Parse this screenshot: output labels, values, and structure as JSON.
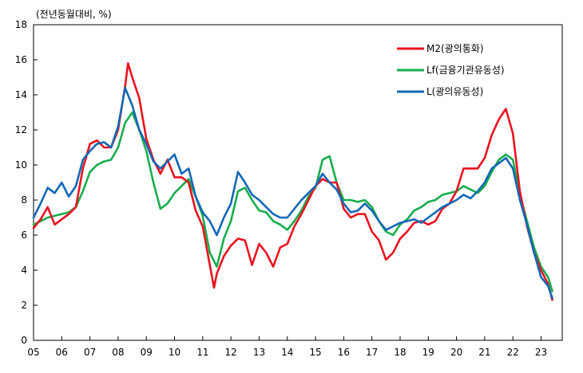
{
  "chart_data": {
    "type": "line",
    "unit_label": "(전년동월대비, %)",
    "xlabel": "",
    "ylabel": "",
    "ylim": [
      0,
      18
    ],
    "y_ticks": [
      0,
      2,
      4,
      6,
      8,
      10,
      12,
      14,
      16,
      18
    ],
    "x_range": [
      2005.0,
      2023.75
    ],
    "x_tick_labels": [
      "05",
      "06",
      "07",
      "08",
      "09",
      "10",
      "11",
      "12",
      "13",
      "14",
      "15",
      "16",
      "17",
      "18",
      "19",
      "20",
      "21",
      "22",
      "23"
    ],
    "grid": false,
    "legend_position": "top-right",
    "series": [
      {
        "name": "M2(광의통화)",
        "color": "#e8131f",
        "x": [
          2005.0,
          2005.25,
          2005.5,
          2005.75,
          2006.0,
          2006.25,
          2006.5,
          2006.75,
          2007.0,
          2007.25,
          2007.5,
          2007.75,
          2008.0,
          2008.25,
          2008.35,
          2008.5,
          2008.75,
          2009.0,
          2009.25,
          2009.5,
          2009.75,
          2010.0,
          2010.25,
          2010.5,
          2010.75,
          2011.0,
          2011.25,
          2011.4,
          2011.5,
          2011.75,
          2012.0,
          2012.25,
          2012.5,
          2012.75,
          2013.0,
          2013.25,
          2013.5,
          2013.75,
          2014.0,
          2014.25,
          2014.5,
          2014.75,
          2015.0,
          2015.25,
          2015.5,
          2015.75,
          2016.0,
          2016.25,
          2016.5,
          2016.75,
          2017.0,
          2017.25,
          2017.5,
          2017.75,
          2018.0,
          2018.25,
          2018.5,
          2018.75,
          2019.0,
          2019.25,
          2019.5,
          2019.75,
          2020.0,
          2020.25,
          2020.5,
          2020.75,
          2021.0,
          2021.25,
          2021.5,
          2021.75,
          2022.0,
          2022.25,
          2022.5,
          2022.75,
          2023.0,
          2023.25,
          2023.4
        ],
        "y": [
          6.4,
          6.9,
          7.6,
          6.6,
          6.9,
          7.2,
          7.6,
          9.8,
          11.2,
          11.4,
          11.0,
          11.0,
          12.0,
          14.5,
          15.8,
          15.0,
          13.8,
          11.5,
          10.3,
          9.5,
          10.3,
          9.3,
          9.3,
          9.0,
          7.4,
          6.5,
          4.3,
          3.0,
          3.8,
          4.8,
          5.4,
          5.8,
          5.7,
          4.3,
          5.5,
          5.0,
          4.2,
          5.3,
          5.5,
          6.5,
          7.2,
          8.0,
          8.8,
          9.2,
          9.0,
          9.0,
          7.5,
          7.0,
          7.2,
          7.2,
          6.2,
          5.7,
          4.6,
          5.0,
          5.8,
          6.2,
          6.7,
          6.8,
          6.6,
          6.8,
          7.5,
          7.8,
          8.5,
          9.8,
          9.8,
          9.8,
          10.4,
          11.7,
          12.6,
          13.2,
          11.8,
          8.5,
          6.5,
          5.0,
          4.0,
          3.2,
          2.3
        ]
      },
      {
        "name": "Lf(금융기관유동성)",
        "color": "#18ad4c",
        "x": [
          2005.0,
          2005.25,
          2005.5,
          2005.75,
          2006.0,
          2006.25,
          2006.5,
          2006.75,
          2007.0,
          2007.25,
          2007.5,
          2007.75,
          2008.0,
          2008.25,
          2008.5,
          2008.75,
          2009.0,
          2009.25,
          2009.5,
          2009.75,
          2010.0,
          2010.25,
          2010.5,
          2010.75,
          2011.0,
          2011.25,
          2011.5,
          2011.75,
          2012.0,
          2012.25,
          2012.5,
          2012.75,
          2013.0,
          2013.25,
          2013.5,
          2013.75,
          2014.0,
          2014.25,
          2014.5,
          2014.75,
          2015.0,
          2015.25,
          2015.5,
          2015.75,
          2016.0,
          2016.25,
          2016.5,
          2016.75,
          2017.0,
          2017.25,
          2017.5,
          2017.75,
          2018.0,
          2018.25,
          2018.5,
          2018.75,
          2019.0,
          2019.25,
          2019.5,
          2019.75,
          2020.0,
          2020.25,
          2020.5,
          2020.75,
          2021.0,
          2021.25,
          2021.5,
          2021.75,
          2022.0,
          2022.25,
          2022.5,
          2022.75,
          2023.0,
          2023.25,
          2023.4
        ],
        "y": [
          6.6,
          6.8,
          7.0,
          7.1,
          7.2,
          7.3,
          7.6,
          8.5,
          9.6,
          10.0,
          10.2,
          10.3,
          11.0,
          12.4,
          13.0,
          12.0,
          10.8,
          9.0,
          7.5,
          7.8,
          8.4,
          8.8,
          9.2,
          8.2,
          7.1,
          5.0,
          4.2,
          5.8,
          6.8,
          8.5,
          8.7,
          8.0,
          7.4,
          7.3,
          6.8,
          6.6,
          6.3,
          6.8,
          7.4,
          8.2,
          8.7,
          10.3,
          10.5,
          9.0,
          8.0,
          8.0,
          7.9,
          8.0,
          7.6,
          6.8,
          6.2,
          6.0,
          6.6,
          6.9,
          7.4,
          7.6,
          7.9,
          8.0,
          8.3,
          8.4,
          8.5,
          8.8,
          8.6,
          8.4,
          8.8,
          9.6,
          10.3,
          10.6,
          10.3,
          8.3,
          6.8,
          5.3,
          4.2,
          3.6,
          2.8
        ]
      },
      {
        "name": "L(광의유동성)",
        "color": "#1368b6",
        "x": [
          2005.0,
          2005.25,
          2005.5,
          2005.75,
          2006.0,
          2006.25,
          2006.5,
          2006.75,
          2007.0,
          2007.25,
          2007.5,
          2007.75,
          2008.0,
          2008.25,
          2008.5,
          2008.75,
          2009.0,
          2009.25,
          2009.5,
          2009.75,
          2010.0,
          2010.25,
          2010.5,
          2010.75,
          2011.0,
          2011.25,
          2011.5,
          2011.75,
          2012.0,
          2012.25,
          2012.5,
          2012.75,
          2013.0,
          2013.25,
          2013.5,
          2013.75,
          2014.0,
          2014.25,
          2014.5,
          2014.75,
          2015.0,
          2015.25,
          2015.5,
          2015.75,
          2016.0,
          2016.25,
          2016.5,
          2016.75,
          2017.0,
          2017.25,
          2017.5,
          2017.75,
          2018.0,
          2018.25,
          2018.5,
          2018.75,
          2019.0,
          2019.25,
          2019.5,
          2019.75,
          2020.0,
          2020.25,
          2020.5,
          2020.75,
          2021.0,
          2021.25,
          2021.5,
          2021.75,
          2022.0,
          2022.25,
          2022.5,
          2022.75,
          2023.0,
          2023.25,
          2023.4
        ],
        "y": [
          7.0,
          7.8,
          8.7,
          8.4,
          9.0,
          8.2,
          8.8,
          10.3,
          10.8,
          11.2,
          11.3,
          11.0,
          12.2,
          14.4,
          13.4,
          12.0,
          11.2,
          10.2,
          9.8,
          10.2,
          10.6,
          9.5,
          9.8,
          8.2,
          7.3,
          6.8,
          6.0,
          7.0,
          7.8,
          9.6,
          9.0,
          8.3,
          8.0,
          7.6,
          7.2,
          7.0,
          7.0,
          7.5,
          8.0,
          8.4,
          8.8,
          9.5,
          9.0,
          8.6,
          7.8,
          7.3,
          7.4,
          7.8,
          7.4,
          6.8,
          6.3,
          6.5,
          6.7,
          6.8,
          6.9,
          6.7,
          7.0,
          7.3,
          7.6,
          7.8,
          8.0,
          8.3,
          8.1,
          8.5,
          9.0,
          9.8,
          10.1,
          10.4,
          9.8,
          8.0,
          6.6,
          5.0,
          3.6,
          3.1,
          2.4
        ]
      }
    ]
  }
}
